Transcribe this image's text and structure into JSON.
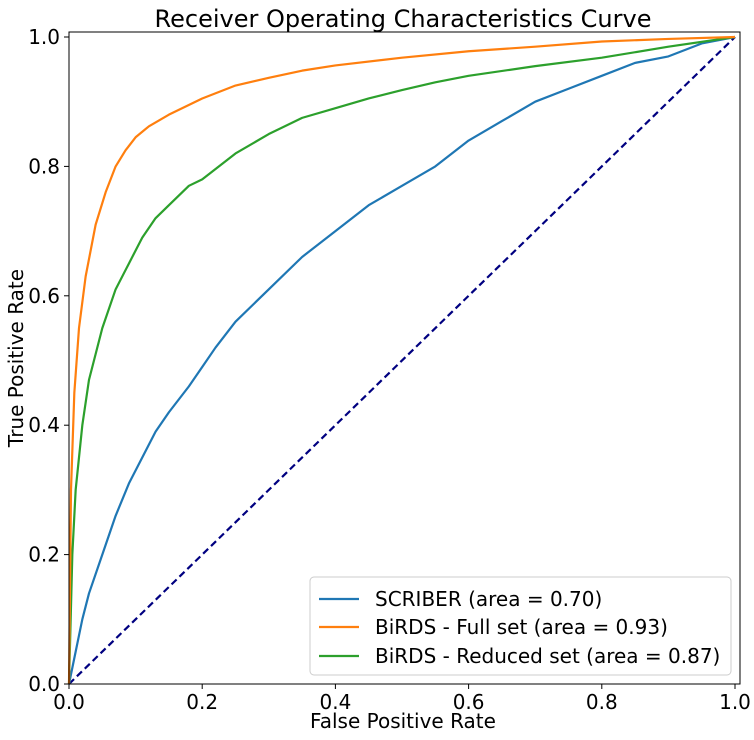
{
  "chart_data": {
    "type": "line",
    "title": "Receiver Operating Characteristics Curve",
    "xlabel": "False Positive Rate",
    "ylabel": "True Positive Rate",
    "xlim": [
      0.0,
      1.0
    ],
    "ylim": [
      0.0,
      1.0
    ],
    "xticks": [
      "0.0",
      "0.2",
      "0.4",
      "0.6",
      "0.8",
      "1.0"
    ],
    "yticks": [
      "0.0",
      "0.2",
      "0.4",
      "0.6",
      "0.8",
      "1.0"
    ],
    "grid": false,
    "legend_position": "lower-right",
    "series": [
      {
        "name": "SCRIBER (area = 0.70)",
        "color": "#1f77b4",
        "x": [
          0,
          0.01,
          0.02,
          0.03,
          0.05,
          0.07,
          0.09,
          0.11,
          0.13,
          0.15,
          0.18,
          0.2,
          0.22,
          0.25,
          0.3,
          0.35,
          0.4,
          0.45,
          0.5,
          0.55,
          0.6,
          0.65,
          0.7,
          0.75,
          0.8,
          0.85,
          0.9,
          0.95,
          1.0
        ],
        "y": [
          0,
          0.05,
          0.1,
          0.14,
          0.2,
          0.26,
          0.31,
          0.35,
          0.39,
          0.42,
          0.46,
          0.49,
          0.52,
          0.56,
          0.61,
          0.66,
          0.7,
          0.74,
          0.77,
          0.8,
          0.84,
          0.87,
          0.9,
          0.92,
          0.94,
          0.96,
          0.97,
          0.99,
          1.0
        ]
      },
      {
        "name": "BiRDS - Full set (area = 0.93)",
        "color": "#ff7f0e",
        "x": [
          0,
          0.003,
          0.008,
          0.015,
          0.025,
          0.04,
          0.055,
          0.07,
          0.085,
          0.1,
          0.12,
          0.15,
          0.2,
          0.25,
          0.3,
          0.35,
          0.4,
          0.5,
          0.6,
          0.7,
          0.8,
          0.9,
          1.0
        ],
        "y": [
          0,
          0.3,
          0.45,
          0.55,
          0.63,
          0.71,
          0.76,
          0.8,
          0.825,
          0.845,
          0.862,
          0.88,
          0.905,
          0.925,
          0.937,
          0.948,
          0.956,
          0.968,
          0.978,
          0.985,
          0.993,
          0.997,
          1.0
        ]
      },
      {
        "name": "BiRDS - Reduced set (area = 0.87)",
        "color": "#2ca02c",
        "x": [
          0,
          0.005,
          0.01,
          0.02,
          0.03,
          0.05,
          0.07,
          0.09,
          0.11,
          0.13,
          0.15,
          0.18,
          0.2,
          0.25,
          0.3,
          0.35,
          0.4,
          0.45,
          0.5,
          0.55,
          0.6,
          0.7,
          0.8,
          0.9,
          1.0
        ],
        "y": [
          0,
          0.2,
          0.3,
          0.4,
          0.47,
          0.55,
          0.61,
          0.65,
          0.69,
          0.72,
          0.74,
          0.77,
          0.78,
          0.82,
          0.85,
          0.875,
          0.89,
          0.905,
          0.918,
          0.93,
          0.94,
          0.955,
          0.968,
          0.985,
          1.0
        ]
      },
      {
        "name": "",
        "color": "#000080",
        "dashed": true,
        "x": [
          0,
          1
        ],
        "y": [
          0,
          1
        ]
      }
    ]
  }
}
